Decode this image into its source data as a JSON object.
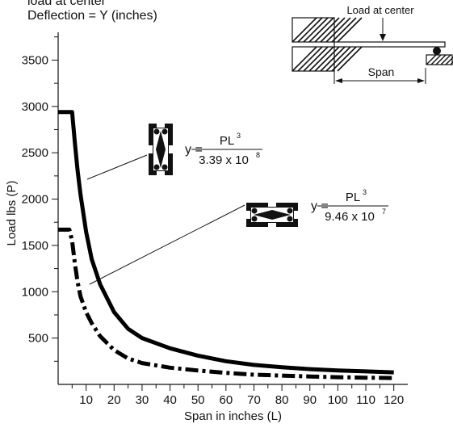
{
  "header": {
    "line1": "load at center",
    "line2": "Deflection = Y (inches)"
  },
  "chart_data": {
    "type": "line",
    "xlabel": "Span in inches (L)",
    "ylabel": "Load lbs (P)",
    "xlim": [
      0,
      125
    ],
    "ylim": [
      0,
      3800
    ],
    "x_ticks": [
      10,
      20,
      30,
      40,
      50,
      60,
      70,
      80,
      90,
      100,
      110,
      120
    ],
    "y_ticks": [
      500,
      1000,
      1500,
      2000,
      2500,
      3000,
      3500
    ],
    "series": [
      {
        "style": "solid",
        "color": "#000000",
        "x": [
          0,
          5,
          6,
          7,
          8,
          10,
          12,
          15,
          20,
          25,
          30,
          40,
          50,
          60,
          70,
          80,
          90,
          100,
          110,
          120
        ],
        "y": [
          2940,
          2940,
          2600,
          2300,
          2050,
          1650,
          1350,
          1080,
          780,
          600,
          500,
          390,
          310,
          250,
          210,
          185,
          165,
          150,
          140,
          130
        ]
      },
      {
        "style": "dash-dot",
        "color": "#000000",
        "x": [
          0,
          4,
          5,
          6,
          7,
          8,
          10,
          12,
          15,
          20,
          25,
          30,
          40,
          50,
          60,
          70,
          80,
          90,
          100,
          110,
          120
        ],
        "y": [
          1670,
          1670,
          1550,
          1300,
          1100,
          950,
          780,
          660,
          520,
          370,
          280,
          230,
          180,
          150,
          125,
          105,
          95,
          85,
          78,
          72,
          68
        ]
      }
    ],
    "annotations": [
      {
        "formula_lhs": "y =",
        "numerator": "PL",
        "exponent_num": "3",
        "denominator": "3.39 x 10",
        "exponent_den": "8"
      },
      {
        "formula_lhs": "y =",
        "numerator": "PL",
        "exponent_num": "3",
        "denominator": "9.46 x 10",
        "exponent_den": "7"
      }
    ],
    "inset": {
      "load_label": "Load at center",
      "span_label": "Span"
    }
  }
}
